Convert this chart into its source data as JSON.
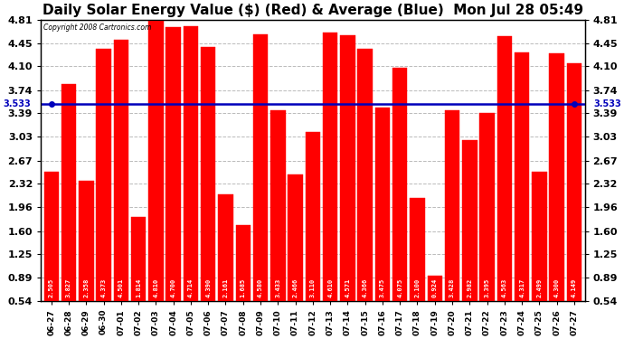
{
  "title": "Daily Solar Energy Value ($) (Red) & Average (Blue)  Mon Jul 28 05:49",
  "copyright": "Copyright 2008 Cartronics.com",
  "average": 3.533,
  "categories": [
    "06-27",
    "06-28",
    "06-29",
    "06-30",
    "07-01",
    "07-02",
    "07-03",
    "07-04",
    "07-05",
    "07-06",
    "07-07",
    "07-08",
    "07-09",
    "07-10",
    "07-11",
    "07-12",
    "07-13",
    "07-14",
    "07-15",
    "07-16",
    "07-17",
    "07-18",
    "07-19",
    "07-20",
    "07-21",
    "07-22",
    "07-23",
    "07-24",
    "07-25",
    "07-26",
    "07-27"
  ],
  "values": [
    2.505,
    3.827,
    2.358,
    4.373,
    4.501,
    1.814,
    4.81,
    4.7,
    4.714,
    4.39,
    2.161,
    1.685,
    4.58,
    3.433,
    2.466,
    3.11,
    4.61,
    4.571,
    4.366,
    3.475,
    4.075,
    2.1,
    0.924,
    3.428,
    2.982,
    3.395,
    4.563,
    4.317,
    2.499,
    4.3,
    4.149
  ],
  "bar_color": "#ff0000",
  "avg_line_color": "#0000bb",
  "bg_color": "#ffffff",
  "plot_bg_color": "#ffffff",
  "ylim_min": 0.54,
  "ylim_max": 4.81,
  "yticks": [
    0.54,
    0.89,
    1.25,
    1.6,
    1.96,
    2.32,
    2.67,
    3.03,
    3.39,
    3.74,
    4.1,
    4.45,
    4.81
  ],
  "grid_color": "#bbbbbb",
  "title_fontsize": 11,
  "tick_fontsize": 8,
  "avg_label": "3.533",
  "bar_width": 0.85
}
